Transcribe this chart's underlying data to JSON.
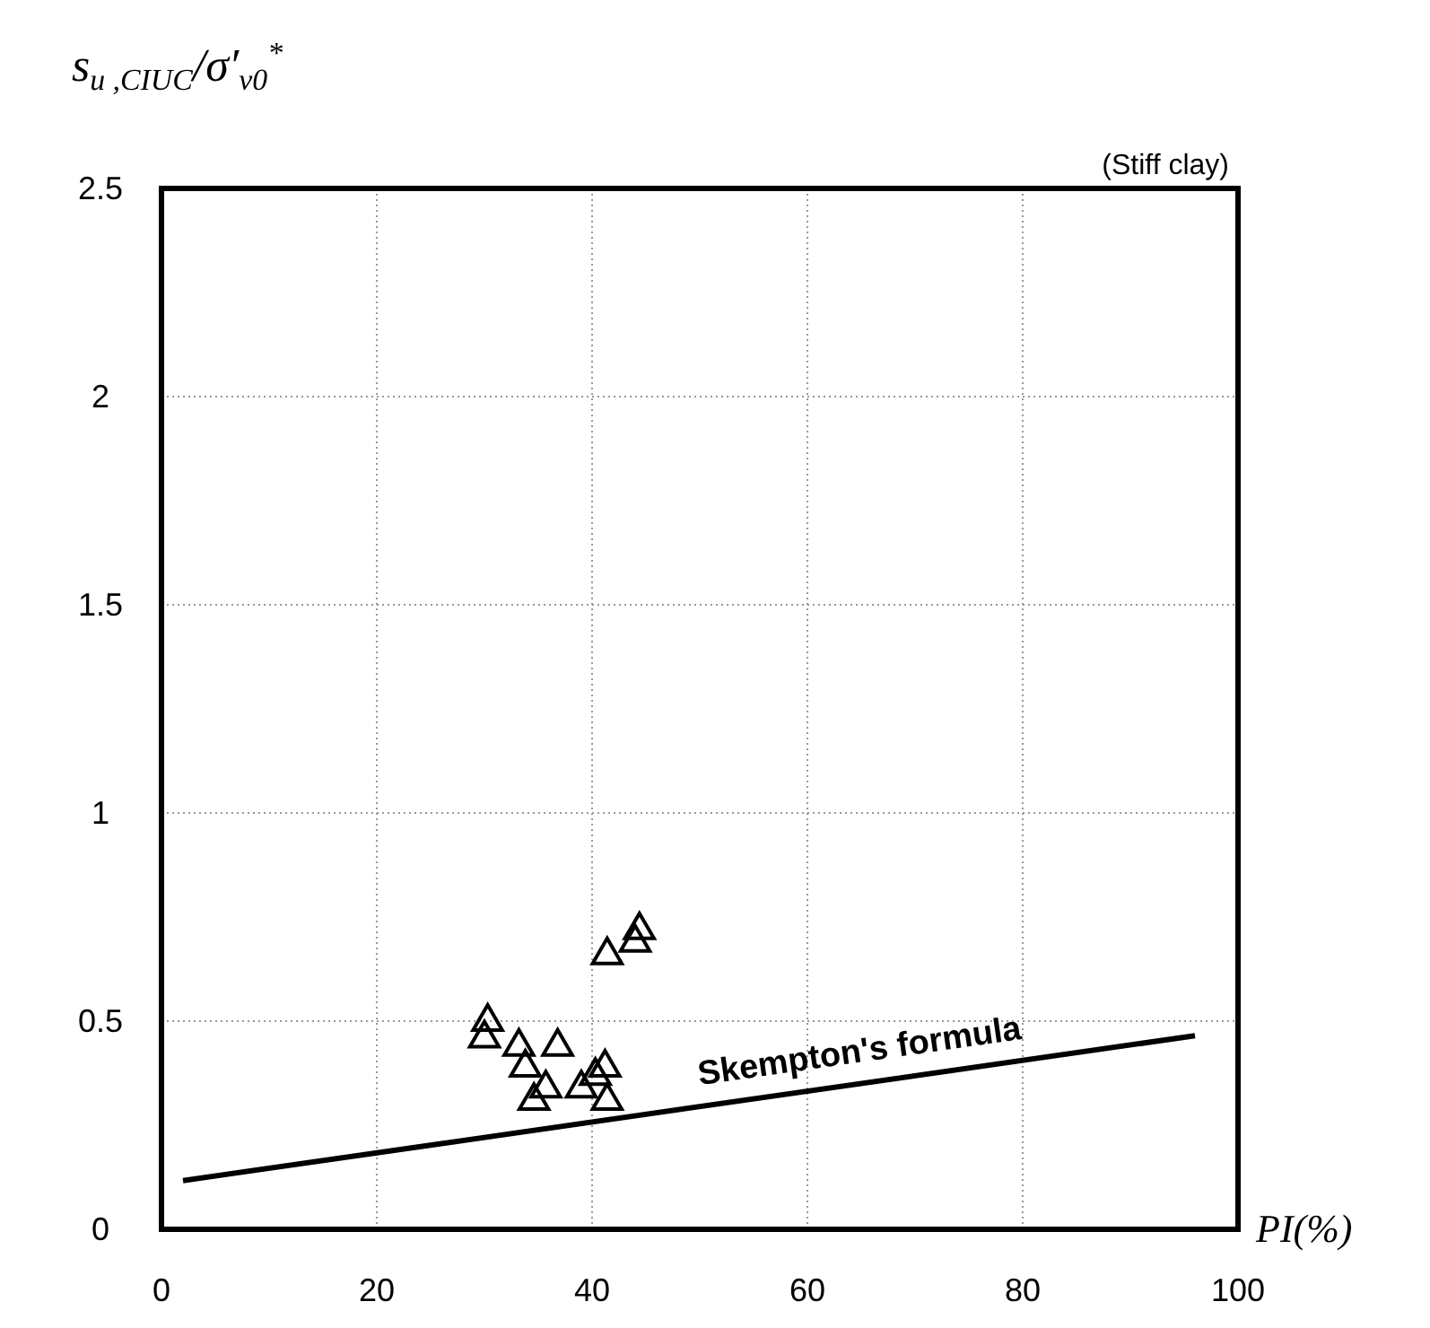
{
  "chart_data": {
    "type": "scatter",
    "ylabel": "s$_{u ,CIUC}$/σ′$_{v0}$$^{*}$",
    "xlabel": "PI(%)",
    "annotations": [
      "(Stiff clay)"
    ],
    "xlim": [
      0,
      100
    ],
    "xticks": [
      0,
      20,
      40,
      60,
      80,
      100
    ],
    "ylim": [
      0,
      2.5
    ],
    "yticks": [
      0,
      0.5,
      1,
      1.5,
      2,
      2.5
    ],
    "grid": true,
    "series": [
      {
        "color": "#000000",
        "marker": "triangle",
        "x": [
          30.3,
          30.0,
          33.2,
          36.8,
          33.8,
          35.7,
          34.6,
          39.0,
          40.3,
          41.2,
          41.4,
          41.4,
          44.0,
          44.4
        ],
        "values": [
          0.5,
          0.46,
          0.44,
          0.44,
          0.39,
          0.34,
          0.31,
          0.34,
          0.37,
          0.39,
          0.31,
          0.66,
          0.69,
          0.72
        ]
      },
      {
        "type": "line",
        "name": "Skempton's formula",
        "color": "#000000",
        "x": [
          2,
          96
        ],
        "values": [
          0.117,
          0.465
        ],
        "line_style": "solid"
      }
    ]
  }
}
